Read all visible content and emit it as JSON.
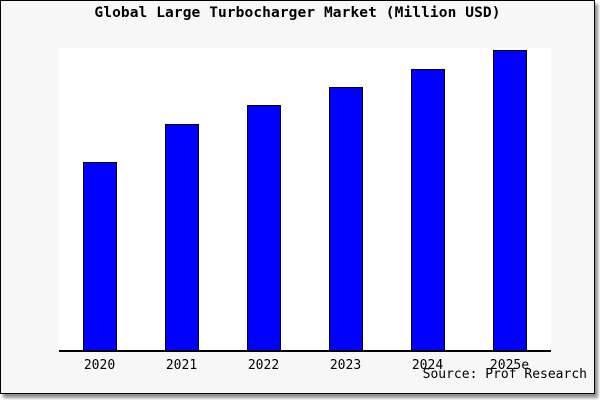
{
  "chart_data": {
    "type": "bar",
    "title": "Global Large Turbocharger Market (Million USD)",
    "categories": [
      "2020",
      "2021",
      "2022",
      "2023",
      "2024",
      "2025e"
    ],
    "values": [
      62.3,
      74.8,
      81.1,
      87.1,
      93.0,
      99.3
    ],
    "units": "relative units — y-axis is unlabeled; values estimated as percent of plot full-scale height",
    "xlabel": "",
    "ylabel": "",
    "ylim": [
      0,
      100
    ],
    "grid": false,
    "legend": "none",
    "y_axis_ticks": "none",
    "bar_fill": "#0000ff",
    "bar_border": "#000000"
  },
  "source": {
    "text": "Source: Prof Research"
  },
  "colors": {
    "card_background": "#f7f7f7",
    "plot_background": "#ffffff",
    "bar_fill": "#0000ff",
    "axis_and_border": "#000000",
    "shadow": "#8f8f8f",
    "text": "#000000"
  }
}
